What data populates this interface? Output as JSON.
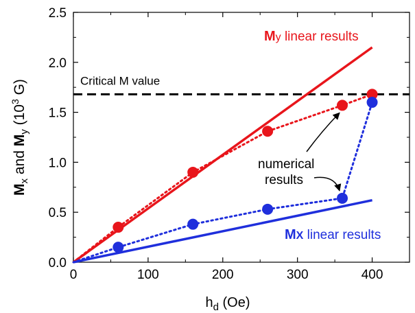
{
  "chart_data": {
    "type": "line",
    "xlabel": {
      "main": "h",
      "sub": "d",
      "rest": " (Oe)"
    },
    "ylabel": {
      "parts": [
        {
          "t": "M",
          "bold": true
        },
        {
          "t": "x",
          "sub": true
        },
        {
          "t": " and "
        },
        {
          "t": "M",
          "bold": true
        },
        {
          "t": "y",
          "sub": true
        },
        {
          "t": " (10"
        },
        {
          "t": "3",
          "sup": true
        },
        {
          "t": " G)"
        }
      ]
    },
    "xlim": [
      0,
      450
    ],
    "ylim": [
      0,
      2.5
    ],
    "xticks": [
      0,
      100,
      200,
      300,
      400
    ],
    "xtick_labels": [
      "0",
      "100",
      "200",
      "300",
      "400"
    ],
    "yticks": [
      0,
      0.5,
      1.0,
      1.5,
      2.0,
      2.5
    ],
    "ytick_labels": [
      "0.0",
      "0.5",
      "1.0",
      "1.5",
      "2.0",
      "2.5"
    ],
    "grid": false,
    "critical_line": {
      "y": 1.68,
      "x": [
        0,
        450
      ],
      "label": "Critical M value",
      "color": "#000000"
    },
    "series": [
      {
        "key": "my_linear",
        "kind": "line",
        "color": "#e8151b",
        "x": [
          0,
          400
        ],
        "y": [
          0,
          2.15
        ],
        "label": {
          "bold": "M",
          "small": "y",
          "rest": " linear results"
        }
      },
      {
        "key": "mx_linear",
        "kind": "line",
        "color": "#1f2fdc",
        "x": [
          0,
          400
        ],
        "y": [
          0,
          0.62
        ],
        "label": {
          "bold": "M",
          "small": "X",
          "rest": " linear results"
        }
      },
      {
        "key": "my_numerical",
        "kind": "dotted-markers",
        "color": "#e8151b",
        "x": [
          0,
          60,
          160,
          260,
          360,
          400
        ],
        "y": [
          0,
          0.35,
          0.9,
          1.31,
          1.57,
          1.68
        ],
        "marker_start": 1
      },
      {
        "key": "mx_numerical",
        "kind": "dotted-markers",
        "color": "#1f2fdc",
        "x": [
          0,
          60,
          160,
          260,
          360,
          400
        ],
        "y": [
          0,
          0.15,
          0.38,
          0.53,
          0.64,
          1.6
        ],
        "marker_start": 1
      }
    ],
    "annotation": {
      "lines": [
        "numerical",
        "results"
      ],
      "arrows_to": [
        [
          360,
          1.57
        ],
        [
          360,
          0.64
        ]
      ]
    }
  }
}
